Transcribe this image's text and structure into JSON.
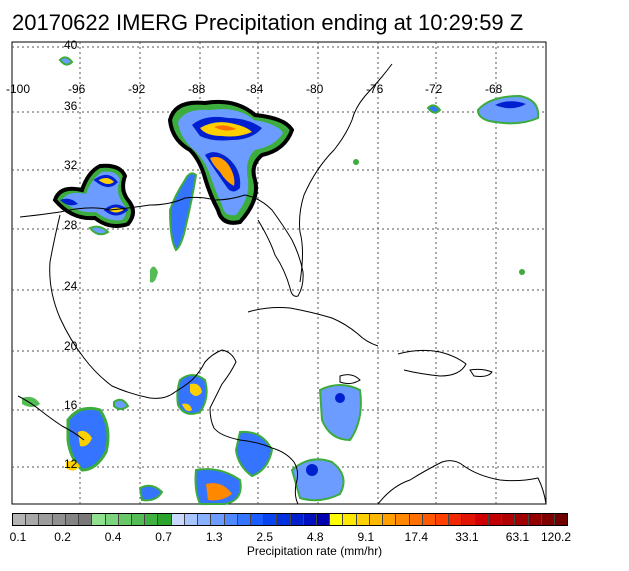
{
  "title": "20170622 IMERG Precipitation ending at 10:29:59 Z",
  "lat_labels": [
    "40",
    "36",
    "32",
    "28",
    "24",
    "20",
    "16",
    "12"
  ],
  "lon_labels": [
    "-100",
    "-96",
    "-92",
    "-88",
    "-84",
    "-80",
    "-76",
    "-72",
    "-68"
  ],
  "colorbar": {
    "label": "Precipitation rate (mm/hr)",
    "ticks": [
      "0.1",
      "0.2",
      "0.4",
      "0.7",
      "1.3",
      "2.5",
      "4.8",
      "9.1",
      "17.4",
      "33.1",
      "63.1",
      "120.2"
    ],
    "colors": [
      "#b4b4b4",
      "#a8a8a8",
      "#9c9c9c",
      "#909090",
      "#848484",
      "#787878",
      "#90e090",
      "#7cd47c",
      "#68c868",
      "#54bc54",
      "#40b040",
      "#2ca42c",
      "#c8d8ff",
      "#a8c4ff",
      "#88b0ff",
      "#6c9cff",
      "#5088ff",
      "#3474ff",
      "#1a5cff",
      "#0a44f0",
      "#0030e0",
      "#0020d0",
      "#0010c0",
      "#0000b0",
      "#ffff00",
      "#ffe800",
      "#ffd000",
      "#ffb800",
      "#ffa000",
      "#ff8800",
      "#ff7000",
      "#ff5800",
      "#ff4000",
      "#f02800",
      "#e01400",
      "#d00000",
      "#c00000",
      "#b00000",
      "#a00000",
      "#900000",
      "#800000",
      "#700000"
    ]
  }
}
